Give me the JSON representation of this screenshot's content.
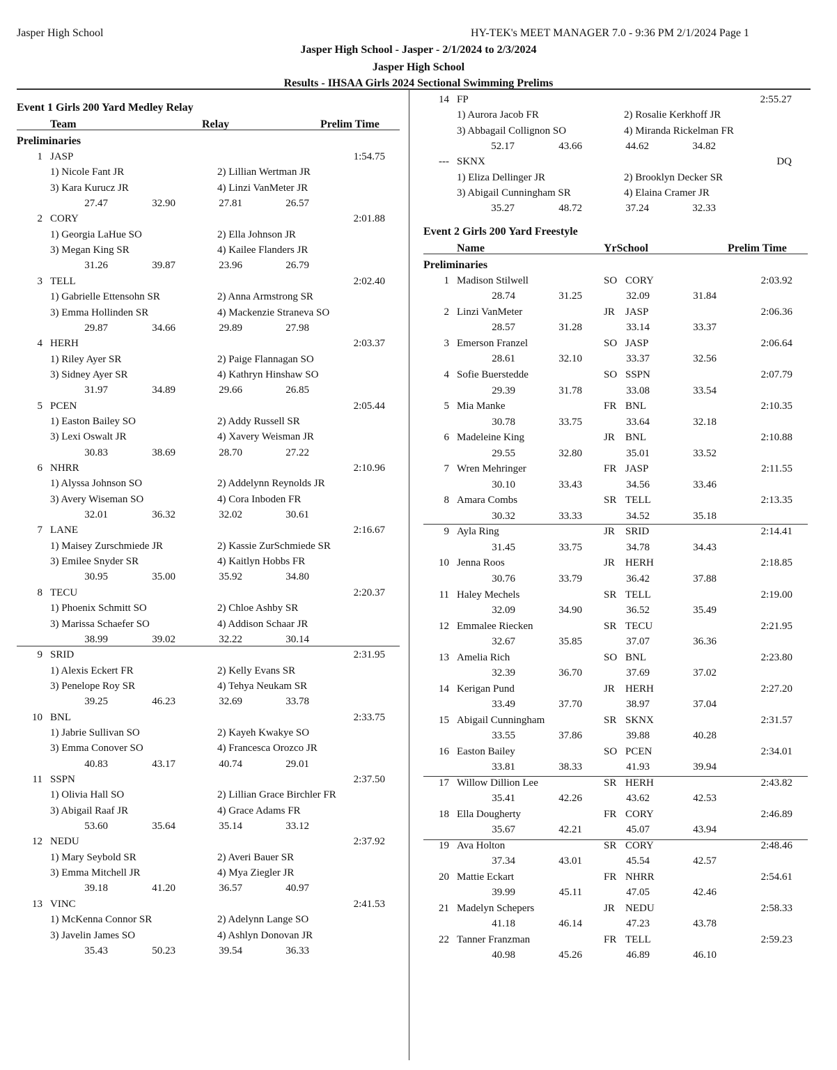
{
  "header": {
    "left": "Jasper High School",
    "right": "HY-TEK's MEET MANAGER 7.0 - 9:36 PM  2/1/2024  Page 1",
    "title1": "Jasper High School - Jasper - 2/1/2024 to 2/3/2024",
    "title2": "Jasper High School",
    "title3": "Results - IHSAA Girls 2024 Sectional Swimming Prelims"
  },
  "event1": {
    "title": "Event 1  Girls 200 Yard Medley Relay",
    "col_team": "Team",
    "col_relay": "Relay",
    "col_time": "Prelim Time",
    "section": "Preliminaries",
    "relays": [
      {
        "place": "1",
        "team": "JASP",
        "time": "1:54.75",
        "legs": [
          "1) Nicole Fant JR",
          "2) Lillian Wertman JR",
          "3) Kara Kurucz JR",
          "4) Linzi VanMeter JR"
        ],
        "splits": [
          "27.47",
          "32.90",
          "27.81",
          "26.57"
        ]
      },
      {
        "place": "2",
        "team": "CORY",
        "time": "2:01.88",
        "legs": [
          "1) Georgia LaHue SO",
          "2) Ella Johnson JR",
          "3) Megan King SR",
          "4) Kailee Flanders JR"
        ],
        "splits": [
          "31.26",
          "39.87",
          "23.96",
          "26.79"
        ]
      },
      {
        "place": "3",
        "team": "TELL",
        "time": "2:02.40",
        "legs": [
          "1) Gabrielle Ettensohn SR",
          "2) Anna Armstrong SR",
          "3) Emma Hollinden SR",
          "4) Mackenzie Straneva SO"
        ],
        "splits": [
          "29.87",
          "34.66",
          "29.89",
          "27.98"
        ]
      },
      {
        "place": "4",
        "team": "HERH",
        "time": "2:03.37",
        "legs": [
          "1) Riley Ayer SR",
          "2) Paige Flannagan SO",
          "3) Sidney Ayer SR",
          "4) Kathryn Hinshaw SO"
        ],
        "splits": [
          "31.97",
          "34.89",
          "29.66",
          "26.85"
        ]
      },
      {
        "place": "5",
        "team": "PCEN",
        "time": "2:05.44",
        "legs": [
          "1) Easton Bailey SO",
          "2) Addy Russell SR",
          "3) Lexi Oswalt JR",
          "4) Xavery Weisman JR"
        ],
        "splits": [
          "30.83",
          "38.69",
          "28.70",
          "27.22"
        ]
      },
      {
        "place": "6",
        "team": "NHRR",
        "time": "2:10.96",
        "legs": [
          "1) Alyssa Johnson SO",
          "2) Addelynn Reynolds JR",
          "3) Avery Wiseman SO",
          "4) Cora Inboden FR"
        ],
        "splits": [
          "32.01",
          "36.32",
          "32.02",
          "30.61"
        ]
      },
      {
        "place": "7",
        "team": "LANE",
        "time": "2:16.67",
        "legs": [
          "1) Maisey Zurschmiede JR",
          "2) Kassie ZurSchmiede SR",
          "3) Emilee Snyder SR",
          "4) Kaitlyn Hobbs FR"
        ],
        "splits": [
          "30.95",
          "35.00",
          "35.92",
          "34.80"
        ]
      },
      {
        "place": "8",
        "team": "TECU",
        "time": "2:20.37",
        "legs": [
          "1) Phoenix Schmitt SO",
          "2) Chloe Ashby SR",
          "3) Marissa Schaefer SO",
          "4) Addison Schaar JR"
        ],
        "splits": [
          "38.99",
          "39.02",
          "32.22",
          "30.14"
        ]
      },
      {
        "place": "9",
        "team": "SRID",
        "time": "2:31.95",
        "legs": [
          "1) Alexis Eckert FR",
          "2) Kelly Evans SR",
          "3) Penelope Roy SR",
          "4) Tehya Neukam SR"
        ],
        "splits": [
          "39.25",
          "46.23",
          "32.69",
          "33.78"
        ]
      },
      {
        "place": "10",
        "team": "BNL",
        "time": "2:33.75",
        "legs": [
          "1) Jabrie Sullivan SO",
          "2) Kayeh Kwakye SO",
          "3) Emma Conover SO",
          "4) Francesca Orozco JR"
        ],
        "splits": [
          "40.83",
          "43.17",
          "40.74",
          "29.01"
        ]
      },
      {
        "place": "11",
        "team": "SSPN",
        "time": "2:37.50",
        "legs": [
          "1) Olivia Hall SO",
          "2) Lillian Grace Birchler FR",
          "3) Abigail Raaf JR",
          "4) Grace Adams FR"
        ],
        "splits": [
          "53.60",
          "35.64",
          "35.14",
          "33.12"
        ]
      },
      {
        "place": "12",
        "team": "NEDU",
        "time": "2:37.92",
        "legs": [
          "1) Mary Seybold SR",
          "2) Averi Bauer SR",
          "3) Emma Mitchell JR",
          "4) Mya Ziegler JR"
        ],
        "splits": [
          "39.18",
          "41.20",
          "36.57",
          "40.97"
        ]
      },
      {
        "place": "13",
        "team": "VINC",
        "time": "2:41.53",
        "legs": [
          "1) McKenna Connor SR",
          "2) Adelynn Lange SO",
          "3) Javelin James SO",
          "4) Ashlyn Donovan JR"
        ],
        "splits": [
          "35.43",
          "50.23",
          "39.54",
          "36.33"
        ]
      },
      {
        "place": "14",
        "team": "FP",
        "time": "2:55.27",
        "legs": [
          "1) Aurora Jacob FR",
          "2) Rosalie Kerkhoff JR",
          "3) Abbagail Collignon SO",
          "4) Miranda Rickelman FR"
        ],
        "splits": [
          "52.17",
          "43.66",
          "44.62",
          "34.82"
        ]
      },
      {
        "place": "---",
        "team": "SKNX",
        "time": "DQ",
        "legs": [
          "1) Eliza Dellinger JR",
          "2) Brooklyn Decker SR",
          "3) Abigail Cunningham SR",
          "4) Elaina Cramer JR"
        ],
        "splits": [
          "35.27",
          "48.72",
          "37.24",
          "32.33"
        ]
      }
    ]
  },
  "event2": {
    "title": "Event 2  Girls 200 Yard Freestyle",
    "col_name": "Name",
    "col_yrschool": "YrSchool",
    "col_time": "Prelim Time",
    "section": "Preliminaries",
    "swimmers": [
      {
        "place": "1",
        "name": "Madison Stilwell",
        "yr": "SO",
        "school": "CORY",
        "time": "2:03.92",
        "splits": [
          "28.74",
          "31.25",
          "32.09",
          "31.84"
        ]
      },
      {
        "place": "2",
        "name": "Linzi VanMeter",
        "yr": "JR",
        "school": "JASP",
        "time": "2:06.36",
        "splits": [
          "28.57",
          "31.28",
          "33.14",
          "33.37"
        ]
      },
      {
        "place": "3",
        "name": "Emerson Franzel",
        "yr": "SO",
        "school": "JASP",
        "time": "2:06.64",
        "splits": [
          "28.61",
          "32.10",
          "33.37",
          "32.56"
        ]
      },
      {
        "place": "4",
        "name": "Sofie Buerstedde",
        "yr": "SO",
        "school": "SSPN",
        "time": "2:07.79",
        "splits": [
          "29.39",
          "31.78",
          "33.08",
          "33.54"
        ]
      },
      {
        "place": "5",
        "name": "Mia Manke",
        "yr": "FR",
        "school": "BNL",
        "time": "2:10.35",
        "splits": [
          "30.78",
          "33.75",
          "33.64",
          "32.18"
        ]
      },
      {
        "place": "6",
        "name": "Madeleine King",
        "yr": "JR",
        "school": "BNL",
        "time": "2:10.88",
        "splits": [
          "29.55",
          "32.80",
          "35.01",
          "33.52"
        ]
      },
      {
        "place": "7",
        "name": "Wren Mehringer",
        "yr": "FR",
        "school": "JASP",
        "time": "2:11.55",
        "splits": [
          "30.10",
          "33.43",
          "34.56",
          "33.46"
        ]
      },
      {
        "place": "8",
        "name": "Amara Combs",
        "yr": "SR",
        "school": "TELL",
        "time": "2:13.35",
        "splits": [
          "30.32",
          "33.33",
          "34.52",
          "35.18"
        ]
      },
      {
        "place": "9",
        "name": "Ayla Ring",
        "yr": "JR",
        "school": "SRID",
        "time": "2:14.41",
        "splits": [
          "31.45",
          "33.75",
          "34.78",
          "34.43"
        ]
      },
      {
        "place": "10",
        "name": "Jenna Roos",
        "yr": "JR",
        "school": "HERH",
        "time": "2:18.85",
        "splits": [
          "30.76",
          "33.79",
          "36.42",
          "37.88"
        ]
      },
      {
        "place": "11",
        "name": "Haley Mechels",
        "yr": "SR",
        "school": "TELL",
        "time": "2:19.00",
        "splits": [
          "32.09",
          "34.90",
          "36.52",
          "35.49"
        ]
      },
      {
        "place": "12",
        "name": "Emmalee Riecken",
        "yr": "SR",
        "school": "TECU",
        "time": "2:21.95",
        "splits": [
          "32.67",
          "35.85",
          "37.07",
          "36.36"
        ]
      },
      {
        "place": "13",
        "name": "Amelia Rich",
        "yr": "SO",
        "school": "BNL",
        "time": "2:23.80",
        "splits": [
          "32.39",
          "36.70",
          "37.69",
          "37.02"
        ]
      },
      {
        "place": "14",
        "name": "Kerigan Pund",
        "yr": "JR",
        "school": "HERH",
        "time": "2:27.20",
        "splits": [
          "33.49",
          "37.70",
          "38.97",
          "37.04"
        ]
      },
      {
        "place": "15",
        "name": "Abigail Cunningham",
        "yr": "SR",
        "school": "SKNX",
        "time": "2:31.57",
        "splits": [
          "33.55",
          "37.86",
          "39.88",
          "40.28"
        ]
      },
      {
        "place": "16",
        "name": "Easton Bailey",
        "yr": "SO",
        "school": "PCEN",
        "time": "2:34.01",
        "splits": [
          "33.81",
          "38.33",
          "41.93",
          "39.94"
        ]
      },
      {
        "place": "17",
        "name": "Willow Dillion Lee",
        "yr": "SR",
        "school": "HERH",
        "time": "2:43.82",
        "splits": [
          "35.41",
          "42.26",
          "43.62",
          "42.53"
        ]
      },
      {
        "place": "18",
        "name": "Ella Dougherty",
        "yr": "FR",
        "school": "CORY",
        "time": "2:46.89",
        "splits": [
          "35.67",
          "42.21",
          "45.07",
          "43.94"
        ]
      },
      {
        "place": "19",
        "name": "Ava Holton",
        "yr": "SR",
        "school": "CORY",
        "time": "2:48.46",
        "splits": [
          "37.34",
          "43.01",
          "45.54",
          "42.57"
        ]
      },
      {
        "place": "20",
        "name": "Mattie Eckart",
        "yr": "FR",
        "school": "NHRR",
        "time": "2:54.61",
        "splits": [
          "39.99",
          "45.11",
          "47.05",
          "42.46"
        ]
      },
      {
        "place": "21",
        "name": "Madelyn Schepers",
        "yr": "JR",
        "school": "NEDU",
        "time": "2:58.33",
        "splits": [
          "41.18",
          "46.14",
          "47.23",
          "43.78"
        ]
      },
      {
        "place": "22",
        "name": "Tanner Franzman",
        "yr": "FR",
        "school": "TELL",
        "time": "2:59.23",
        "splits": [
          "40.98",
          "45.26",
          "46.89",
          "46.10"
        ]
      }
    ]
  }
}
